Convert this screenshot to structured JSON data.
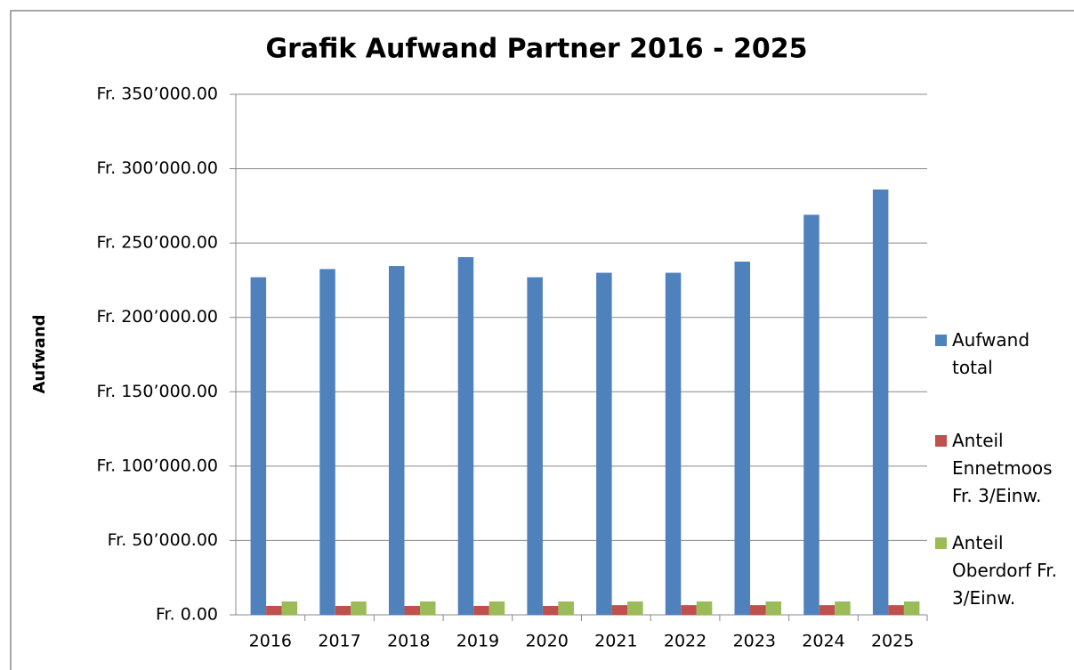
{
  "chart_data": {
    "type": "bar",
    "title": "Grafik Aufwand Partner 2016 - 2025",
    "y_label": "Aufwand",
    "categories": [
      "2016",
      "2017",
      "2018",
      "2019",
      "2020",
      "2021",
      "2022",
      "2023",
      "2024",
      "2025"
    ],
    "series": [
      {
        "name": "Aufwand total",
        "color": "#4f81bd",
        "values": [
          227000,
          232500,
          234500,
          240500,
          227000,
          230000,
          230000,
          237500,
          269000,
          286000
        ]
      },
      {
        "name": "Anteil Ennetmoos Fr. 3/Einw.",
        "color": "#c0504d",
        "values": [
          6000,
          6000,
          6000,
          6000,
          6000,
          6500,
          6500,
          6500,
          6500,
          6500
        ]
      },
      {
        "name": "Anteil Oberdorf Fr. 3/Einw.",
        "color": "#9bbb59",
        "values": [
          9000,
          9000,
          9000,
          9000,
          9000,
          9000,
          9000,
          9000,
          9000,
          9000
        ]
      }
    ],
    "ylim": [
      0,
      350000
    ],
    "yticks": [
      {
        "value": 0,
        "label": "Fr. 0.00"
      },
      {
        "value": 50000,
        "label": "Fr. 50’000.00"
      },
      {
        "value": 100000,
        "label": "Fr. 100’000.00"
      },
      {
        "value": 150000,
        "label": "Fr. 150’000.00"
      },
      {
        "value": 200000,
        "label": "Fr. 200’000.00"
      },
      {
        "value": 250000,
        "label": "Fr. 250’000.00"
      },
      {
        "value": 300000,
        "label": "Fr. 300’000.00"
      },
      {
        "value": 350000,
        "label": "Fr. 350’000.00"
      }
    ],
    "grid": true,
    "legend": "right"
  }
}
